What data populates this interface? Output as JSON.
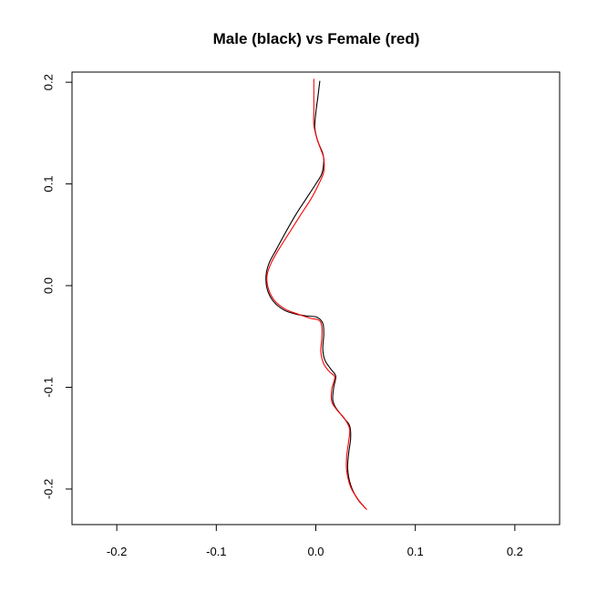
{
  "chart_data": {
    "type": "line",
    "title": "Male (black) vs Female (red)",
    "xlabel": "",
    "ylabel": "",
    "xlim": [
      -0.245,
      0.245
    ],
    "ylim": [
      -0.235,
      0.21
    ],
    "xticks": [
      -0.2,
      -0.1,
      0.0,
      0.1,
      0.2
    ],
    "xtick_labels": [
      "-0.2",
      "-0.1",
      "0.0",
      "0.1",
      "0.2"
    ],
    "yticks": [
      -0.2,
      -0.1,
      0.0,
      0.1,
      0.2
    ],
    "ytick_labels": [
      "-0.2",
      "-0.1",
      "0.0",
      "0.1",
      "0.2"
    ],
    "grid": false,
    "series": [
      {
        "color": "#000000",
        "points": [
          [
            0.004,
            0.201
          ],
          [
            0.002,
            0.185
          ],
          [
            0.0,
            0.17
          ],
          [
            -0.001,
            0.155
          ],
          [
            0.002,
            0.142
          ],
          [
            0.007,
            0.13
          ],
          [
            0.008,
            0.122
          ],
          [
            0.006,
            0.11
          ],
          [
            0.0,
            0.1
          ],
          [
            -0.01,
            0.085
          ],
          [
            -0.02,
            0.07
          ],
          [
            -0.03,
            0.053
          ],
          [
            -0.04,
            0.035
          ],
          [
            -0.047,
            0.022
          ],
          [
            -0.05,
            0.01
          ],
          [
            -0.049,
            -0.003
          ],
          [
            -0.043,
            -0.015
          ],
          [
            -0.032,
            -0.024
          ],
          [
            -0.02,
            -0.028
          ],
          [
            -0.008,
            -0.03
          ],
          [
            0.001,
            -0.031
          ],
          [
            0.007,
            -0.037
          ],
          [
            0.008,
            -0.048
          ],
          [
            0.007,
            -0.062
          ],
          [
            0.009,
            -0.073
          ],
          [
            0.015,
            -0.082
          ],
          [
            0.02,
            -0.089
          ],
          [
            0.018,
            -0.1
          ],
          [
            0.017,
            -0.112
          ],
          [
            0.02,
            -0.12
          ],
          [
            0.028,
            -0.13
          ],
          [
            0.034,
            -0.138
          ],
          [
            0.035,
            -0.15
          ],
          [
            0.033,
            -0.165
          ],
          [
            0.032,
            -0.18
          ],
          [
            0.035,
            -0.196
          ],
          [
            0.042,
            -0.21
          ],
          [
            0.05,
            -0.219
          ]
        ]
      },
      {
        "color": "#ff0000",
        "points": [
          [
            -0.002,
            0.203
          ],
          [
            -0.002,
            0.187
          ],
          [
            -0.002,
            0.172
          ],
          [
            -0.002,
            0.158
          ],
          [
            0.001,
            0.145
          ],
          [
            0.005,
            0.134
          ],
          [
            0.008,
            0.125
          ],
          [
            0.008,
            0.112
          ],
          [
            0.003,
            0.1
          ],
          [
            -0.005,
            0.085
          ],
          [
            -0.015,
            0.07
          ],
          [
            -0.026,
            0.053
          ],
          [
            -0.037,
            0.036
          ],
          [
            -0.045,
            0.022
          ],
          [
            -0.049,
            0.01
          ],
          [
            -0.048,
            -0.002
          ],
          [
            -0.042,
            -0.014
          ],
          [
            -0.031,
            -0.023
          ],
          [
            -0.018,
            -0.028
          ],
          [
            -0.006,
            -0.032
          ],
          [
            0.003,
            -0.034
          ],
          [
            0.006,
            -0.04
          ],
          [
            0.006,
            -0.052
          ],
          [
            0.005,
            -0.065
          ],
          [
            0.008,
            -0.077
          ],
          [
            0.014,
            -0.085
          ],
          [
            0.019,
            -0.09
          ],
          [
            0.016,
            -0.102
          ],
          [
            0.016,
            -0.114
          ],
          [
            0.021,
            -0.122
          ],
          [
            0.029,
            -0.131
          ],
          [
            0.034,
            -0.141
          ],
          [
            0.033,
            -0.153
          ],
          [
            0.031,
            -0.168
          ],
          [
            0.031,
            -0.182
          ],
          [
            0.035,
            -0.198
          ],
          [
            0.043,
            -0.211
          ],
          [
            0.051,
            -0.22
          ]
        ]
      }
    ]
  }
}
